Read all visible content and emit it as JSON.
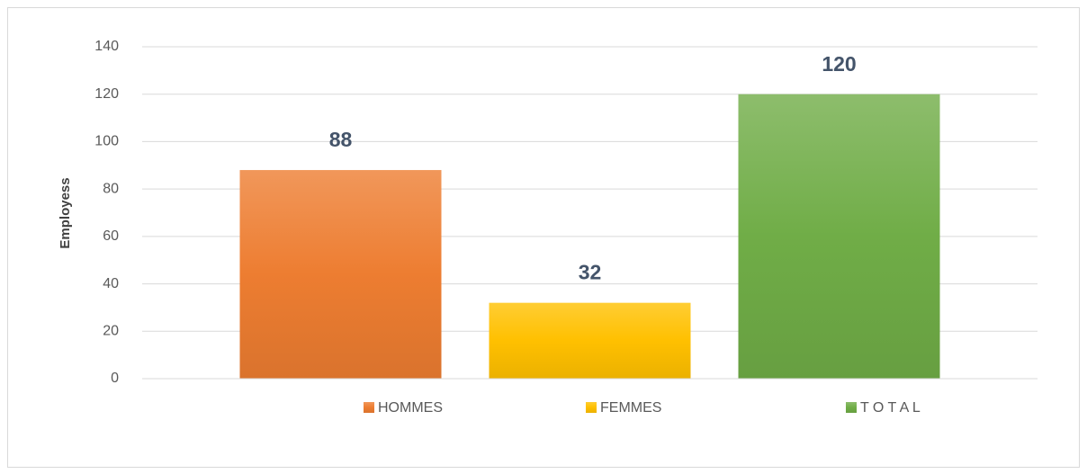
{
  "chart_data": {
    "type": "bar",
    "y_label": "Employess",
    "categories": [
      null
    ],
    "series": [
      {
        "name": "HOMMES",
        "color": "#ed7d31",
        "values": [
          88
        ]
      },
      {
        "name": "FEMMES",
        "color": "#ffc000",
        "values": [
          32
        ]
      },
      {
        "name": "T O T A L",
        "color": "#70ad47",
        "values": [
          120
        ]
      }
    ],
    "ylim": [
      0,
      140
    ],
    "yticks": [
      0,
      20,
      40,
      60,
      80,
      100,
      120,
      140
    ],
    "grid": true,
    "legend": "bottom"
  }
}
